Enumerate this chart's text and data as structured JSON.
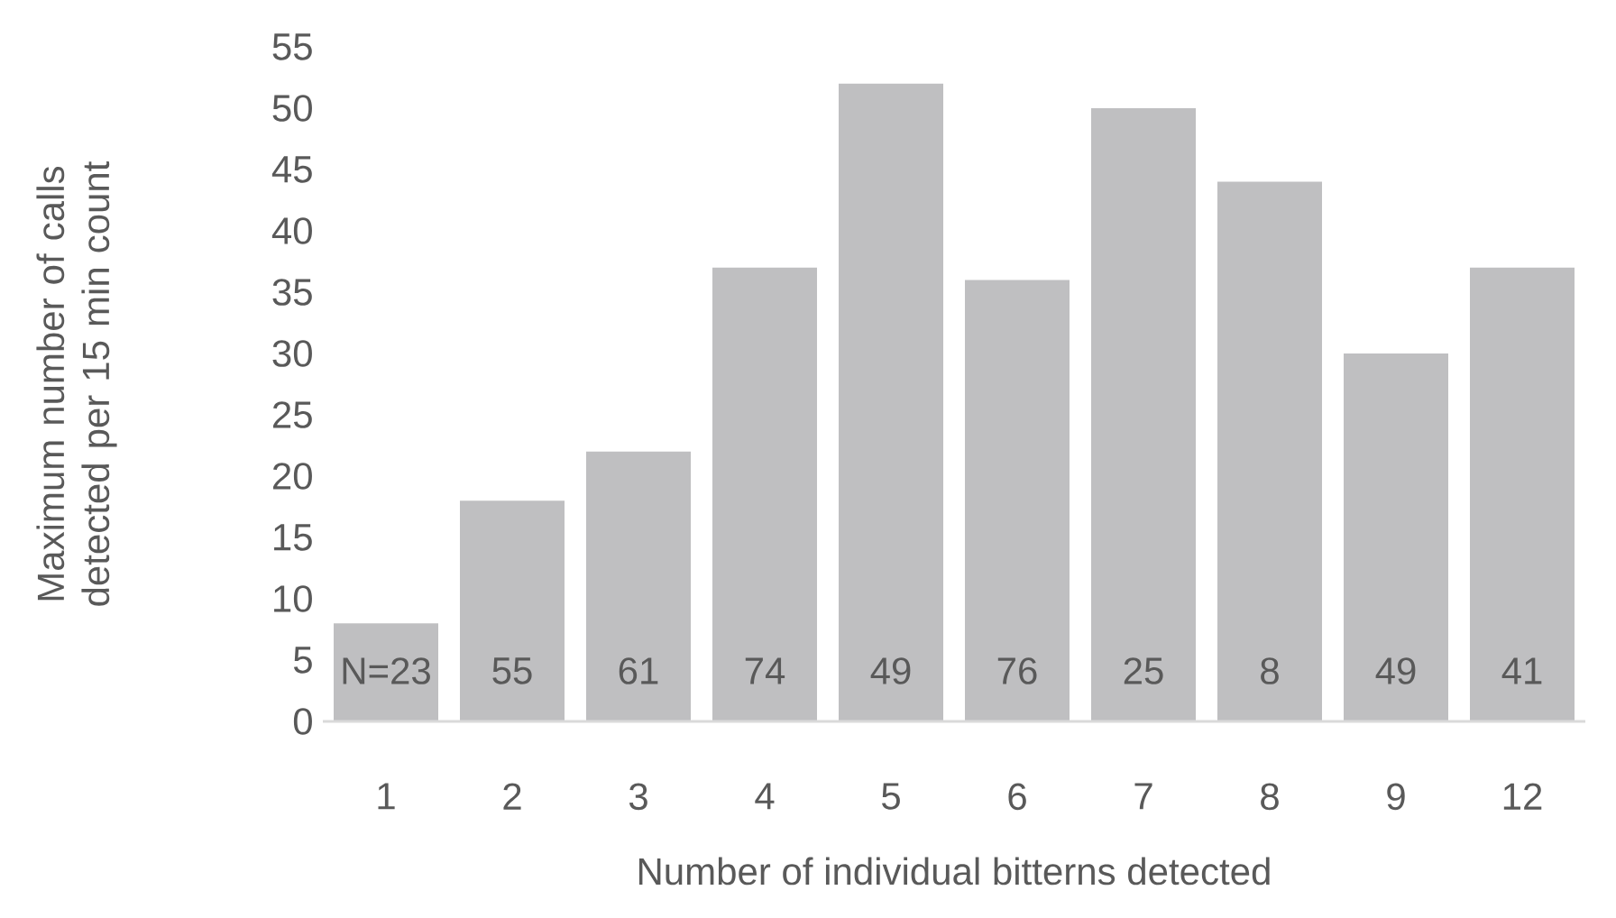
{
  "chart_data": {
    "type": "bar",
    "xlabel": "Number of individual bitterns detected",
    "ylabel": "Maximum number of calls detected per 15 min count",
    "categories": [
      "1",
      "2",
      "3",
      "4",
      "5",
      "6",
      "7",
      "8",
      "9",
      "12"
    ],
    "values": [
      8,
      18,
      22,
      37,
      52,
      36,
      50,
      44,
      30,
      37
    ],
    "color": "#bfbfc1",
    "ylim": [
      0,
      55
    ],
    "yticks": [
      0,
      5,
      10,
      15,
      20,
      25,
      30,
      35,
      40,
      45,
      50,
      55
    ],
    "grid": false,
    "annotations": [
      "N=23",
      "55",
      "61",
      "74",
      "49",
      "76",
      "25",
      "8",
      "49",
      "41"
    ]
  }
}
